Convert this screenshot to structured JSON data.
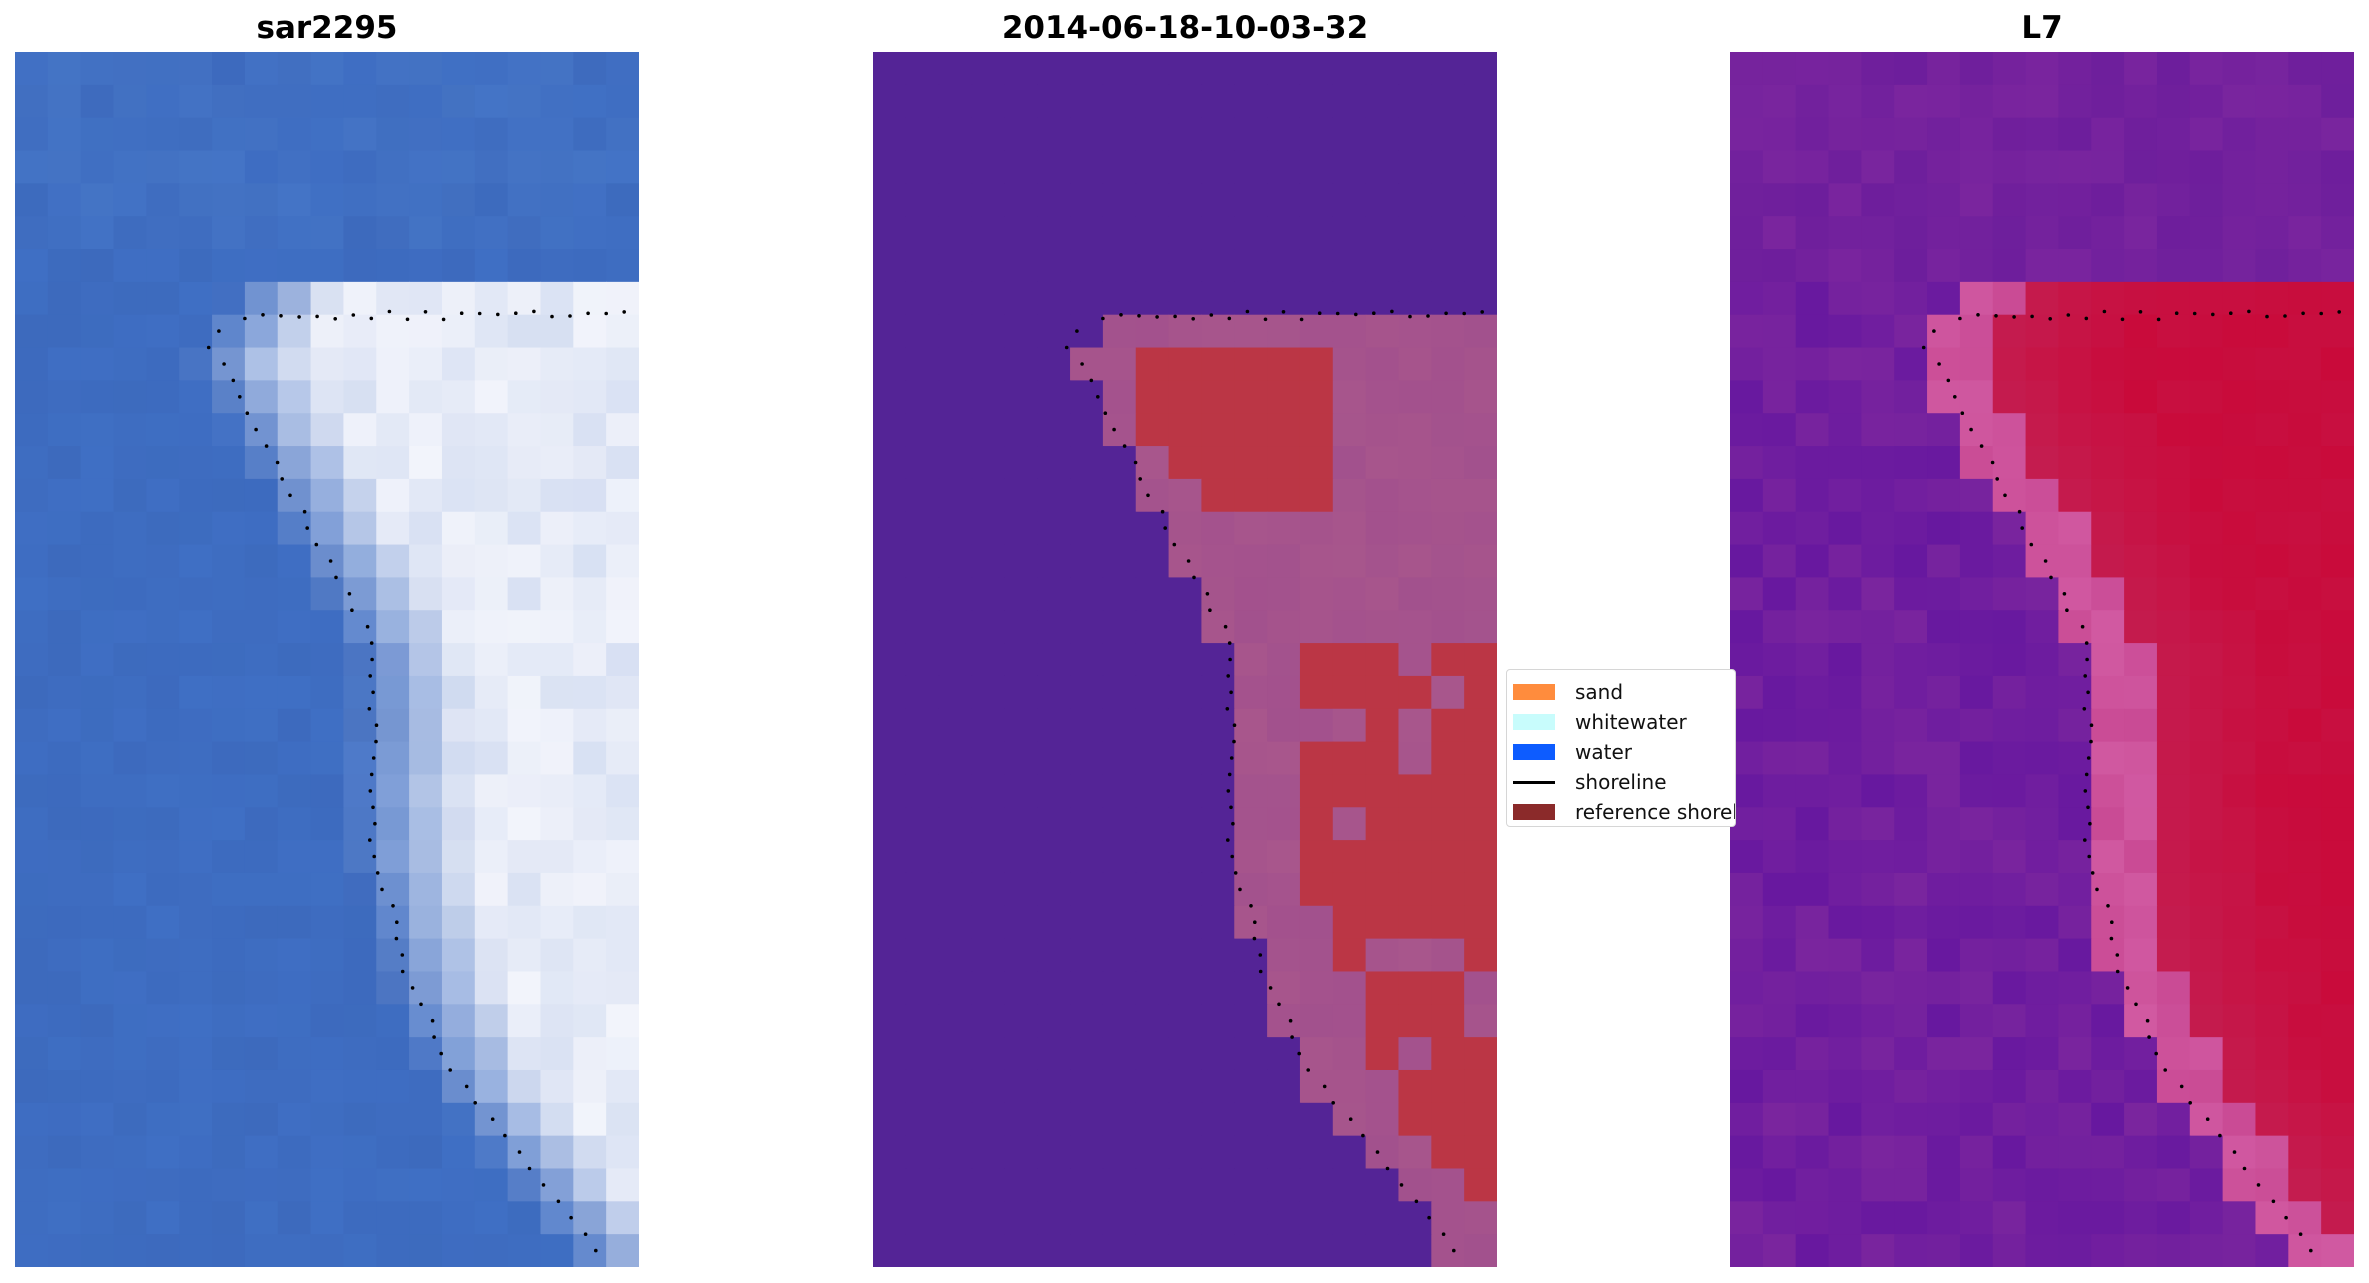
{
  "panels": [
    {
      "title": "sar2295",
      "kind": "rgb"
    },
    {
      "title": "2014-06-18-10-03-32",
      "kind": "classification"
    },
    {
      "title": "L7",
      "kind": "index"
    }
  ],
  "legend": {
    "items": [
      {
        "label": "sand",
        "color": "#ff8c3d",
        "type": "patch"
      },
      {
        "label": "whitewater",
        "color": "#c8fcfc",
        "type": "patch"
      },
      {
        "label": "water",
        "color": "#0d5cff",
        "type": "patch"
      },
      {
        "label": "shoreline",
        "color": "#000000",
        "type": "line"
      },
      {
        "label": "reference shoreline buffer",
        "color": "#8b2a2a",
        "type": "patch"
      }
    ]
  },
  "colors": {
    "rgb_water": "#3f6fc4",
    "rgb_surf": "#f2f4fb",
    "class_background": "#542496",
    "class_buffer": "#a8568c",
    "class_sand": "#bb3645",
    "index_low": "#5a0fa0",
    "index_mid": "#d15aa2",
    "index_high": "#c90a3a"
  }
}
